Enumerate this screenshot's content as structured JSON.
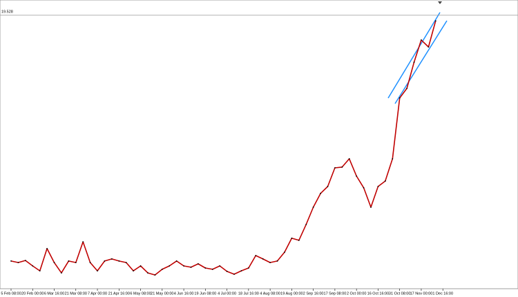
{
  "chart_data": {
    "type": "line",
    "price_line": 19.528,
    "color": "#c00000",
    "categories": [
      "5 Feb 08:00",
      null,
      null,
      "20 Feb 00:00",
      null,
      null,
      "6 Mar 16:00",
      null,
      null,
      "21 Mar 08:00",
      null,
      null,
      "7 Apr 00:00",
      null,
      null,
      "21 Apr 16:00",
      null,
      null,
      "6 May 08:00",
      null,
      null,
      "21 May 00:00",
      null,
      null,
      "4 Jun 16:00",
      null,
      null,
      "19 Jun 08:00",
      null,
      null,
      "4 Jul 00:00",
      null,
      null,
      "18 Jul 16:00",
      null,
      null,
      "4 Aug 08:00",
      null,
      null,
      "19 Aug 00:00",
      null,
      null,
      "2 Sep 16:00",
      null,
      null,
      "17 Sep 08:00",
      null,
      null,
      "2 Oct 00:00",
      null,
      null,
      "16 Oct 16:00",
      null,
      null,
      "31 Oct 08:00",
      null,
      null,
      "17 Nov 00:00",
      null,
      null,
      "1 Dec 16:00",
      null,
      null
    ],
    "values": [
      6.47,
      6.39,
      6.5,
      6.21,
      5.95,
      7.13,
      6.39,
      5.84,
      6.47,
      6.39,
      7.49,
      6.39,
      5.95,
      6.47,
      6.58,
      6.47,
      6.39,
      5.95,
      6.21,
      5.84,
      5.73,
      6.03,
      6.21,
      6.47,
      6.21,
      6.14,
      6.32,
      6.1,
      6.03,
      6.21,
      5.92,
      5.77,
      5.95,
      6.1,
      6.76,
      6.58,
      6.39,
      6.47,
      6.94,
      7.68,
      7.57,
      8.41,
      9.33,
      10.06,
      10.43,
      11.42,
      11.46,
      11.9,
      10.98,
      10.36,
      9.33,
      10.43,
      10.72,
      11.9,
      15.13,
      15.64,
      17.03,
      18.21,
      17.84,
      19.23,
      null,
      null,
      null
    ],
    "ylim": [
      5,
      20.335
    ]
  }
}
